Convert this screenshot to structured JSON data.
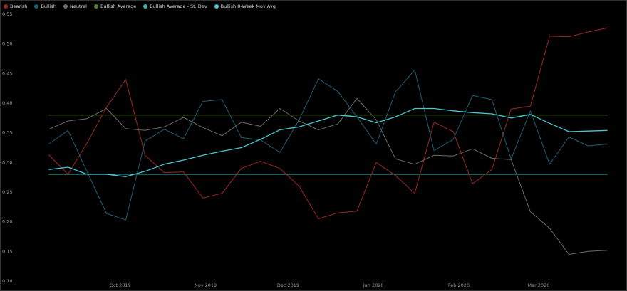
{
  "chart_data": {
    "type": "line",
    "title": "",
    "xlabel": "",
    "ylabel": "",
    "ylim": [
      0.1,
      0.55
    ],
    "y_ticks": [
      "0.10",
      "0.15",
      "0.20",
      "0.25",
      "0.30",
      "0.35",
      "0.40",
      "0.45",
      "0.50",
      "0.55"
    ],
    "x_tick_labels": [
      "Oct 2019",
      "Nov 2019",
      "Dec 2019",
      "Jan 2020",
      "Feb 2020",
      "Mar 2020"
    ],
    "x_tick_positions": [
      "2019-10-01",
      "2019-11-01",
      "2019-12-01",
      "2020-01-01",
      "2020-02-01",
      "2020-03-01"
    ],
    "x": [
      "2019-09-05",
      "2019-09-12",
      "2019-09-19",
      "2019-09-26",
      "2019-10-03",
      "2019-10-10",
      "2019-10-17",
      "2019-10-24",
      "2019-10-31",
      "2019-11-07",
      "2019-11-14",
      "2019-11-21",
      "2019-11-28",
      "2019-12-05",
      "2019-12-12",
      "2019-12-19",
      "2019-12-26",
      "2020-01-02",
      "2020-01-09",
      "2020-01-16",
      "2020-01-23",
      "2020-01-30",
      "2020-02-06",
      "2020-02-13",
      "2020-02-20",
      "2020-02-27",
      "2020-03-05",
      "2020-03-12",
      "2020-03-19",
      "2020-03-26"
    ],
    "series": [
      {
        "name": "Bearish",
        "color": "#9b2a22",
        "values": [
          0.313,
          0.28,
          0.333,
          0.393,
          0.44,
          0.312,
          0.283,
          0.284,
          0.24,
          0.248,
          0.29,
          0.302,
          0.29,
          0.26,
          0.205,
          0.215,
          0.218,
          0.3,
          0.278,
          0.248,
          0.368,
          0.352,
          0.264,
          0.288,
          0.39,
          0.395,
          0.513,
          0.512,
          0.52,
          0.527
        ]
      },
      {
        "name": "Bullish",
        "color": "#1e5f73",
        "values": [
          0.331,
          0.354,
          0.284,
          0.214,
          0.203,
          0.336,
          0.356,
          0.34,
          0.403,
          0.406,
          0.342,
          0.338,
          0.317,
          0.372,
          0.441,
          0.42,
          0.377,
          0.331,
          0.419,
          0.456,
          0.32,
          0.339,
          0.413,
          0.406,
          0.306,
          0.387,
          0.297,
          0.343,
          0.328,
          0.331
        ]
      },
      {
        "name": "Neutral",
        "color": "#6b6b6b",
        "values": [
          0.356,
          0.37,
          0.374,
          0.391,
          0.357,
          0.354,
          0.36,
          0.376,
          0.359,
          0.345,
          0.368,
          0.361,
          0.391,
          0.37,
          0.355,
          0.365,
          0.408,
          0.372,
          0.306,
          0.297,
          0.312,
          0.311,
          0.323,
          0.307,
          0.305,
          0.217,
          0.189,
          0.145,
          0.15,
          0.152
        ]
      },
      {
        "name": "Bullish Average",
        "color": "#5c7a3a",
        "values": [
          0.38,
          0.38,
          0.38,
          0.38,
          0.38,
          0.38,
          0.38,
          0.38,
          0.38,
          0.38,
          0.38,
          0.38,
          0.38,
          0.38,
          0.38,
          0.38,
          0.38,
          0.38,
          0.38,
          0.38,
          0.38,
          0.38,
          0.38,
          0.38,
          0.38,
          0.38,
          0.38,
          0.38,
          0.38,
          0.38
        ]
      },
      {
        "name": "Bullish Average - St. Dev",
        "color": "#3fb0b0",
        "values": [
          0.28,
          0.28,
          0.28,
          0.28,
          0.28,
          0.28,
          0.28,
          0.28,
          0.28,
          0.28,
          0.28,
          0.28,
          0.28,
          0.28,
          0.28,
          0.28,
          0.28,
          0.28,
          0.28,
          0.28,
          0.28,
          0.28,
          0.28,
          0.28,
          0.28,
          0.28,
          0.28,
          0.28,
          0.28,
          0.28
        ]
      },
      {
        "name": "Bullish 8-Week Mov Avg",
        "color": "#49c6cf",
        "values": [
          0.288,
          0.292,
          0.28,
          0.28,
          0.276,
          0.285,
          0.297,
          0.304,
          0.312,
          0.319,
          0.325,
          0.339,
          0.355,
          0.36,
          0.37,
          0.38,
          0.377,
          0.367,
          0.377,
          0.391,
          0.391,
          0.387,
          0.384,
          0.382,
          0.375,
          0.381,
          0.366,
          0.352,
          0.353,
          0.354
        ]
      }
    ],
    "legend_position": "top-left",
    "grid": false
  }
}
